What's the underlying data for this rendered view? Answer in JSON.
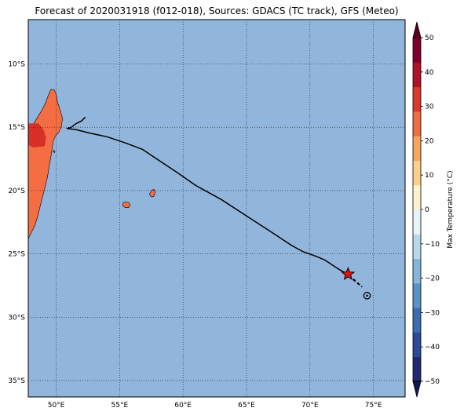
{
  "title": "Forecast of 2020031918 (f012-018), Sources: GDACS (TC track), GFS (Meteo)",
  "map": {
    "lon_range": [
      47.8,
      77.5
    ],
    "lat_range": [
      -36.3,
      -6.5
    ],
    "ocean_color": "#92b5db",
    "grid": "dotted",
    "lon_ticks": [
      {
        "value": 50,
        "label": "50°E"
      },
      {
        "value": 55,
        "label": "55°E"
      },
      {
        "value": 60,
        "label": "60°E"
      },
      {
        "value": 65,
        "label": "65°E"
      },
      {
        "value": 70,
        "label": "70°E"
      },
      {
        "value": 75,
        "label": "75°E"
      }
    ],
    "lat_ticks": [
      {
        "value": -10,
        "label": "10°S"
      },
      {
        "value": -15,
        "label": "15°S"
      },
      {
        "value": -20,
        "label": "20°S"
      },
      {
        "value": -25,
        "label": "25°S"
      },
      {
        "value": -30,
        "label": "30°S"
      },
      {
        "value": -35,
        "label": "35°S"
      }
    ],
    "land": [
      {
        "name": "Madagascar",
        "color": "#f46d43",
        "outline": [
          [
            47.8,
            -16.2
          ],
          [
            48.0,
            -15.2
          ],
          [
            48.3,
            -14.6
          ],
          [
            48.6,
            -14.1
          ],
          [
            48.9,
            -13.6
          ],
          [
            49.2,
            -13.0
          ],
          [
            49.4,
            -12.4
          ],
          [
            49.6,
            -12.0
          ],
          [
            49.85,
            -12.05
          ],
          [
            50.0,
            -12.4
          ],
          [
            50.1,
            -13.0
          ],
          [
            50.3,
            -13.6
          ],
          [
            50.5,
            -14.3
          ],
          [
            50.4,
            -15.0
          ],
          [
            50.2,
            -15.4
          ],
          [
            50.0,
            -15.6
          ],
          [
            49.8,
            -16.0
          ],
          [
            49.7,
            -16.6
          ],
          [
            49.6,
            -17.2
          ],
          [
            49.5,
            -17.8
          ],
          [
            49.4,
            -18.4
          ],
          [
            49.3,
            -19.0
          ],
          [
            49.1,
            -19.8
          ],
          [
            48.9,
            -20.6
          ],
          [
            48.7,
            -21.4
          ],
          [
            48.5,
            -22.2
          ],
          [
            48.3,
            -22.8
          ],
          [
            48.1,
            -23.2
          ],
          [
            47.9,
            -23.6
          ],
          [
            47.8,
            -23.8
          ]
        ]
      },
      {
        "name": "Reunion",
        "color": "#f46d43",
        "outline": [
          [
            55.25,
            -21.0
          ],
          [
            55.45,
            -20.9
          ],
          [
            55.7,
            -20.95
          ],
          [
            55.85,
            -21.15
          ],
          [
            55.7,
            -21.35
          ],
          [
            55.45,
            -21.35
          ],
          [
            55.25,
            -21.2
          ]
        ]
      },
      {
        "name": "Mauritius",
        "color": "#f46d43",
        "outline": [
          [
            57.5,
            -20.0
          ],
          [
            57.7,
            -19.9
          ],
          [
            57.8,
            -20.15
          ],
          [
            57.7,
            -20.45
          ],
          [
            57.5,
            -20.5
          ],
          [
            57.35,
            -20.3
          ]
        ]
      },
      {
        "name": "Ile Sainte-Marie",
        "color": "#f46d43",
        "outline": [
          [
            49.8,
            -16.8
          ],
          [
            49.9,
            -16.9
          ],
          [
            49.88,
            -17.0
          ],
          [
            49.78,
            -16.95
          ]
        ]
      }
    ],
    "warm_patches": [
      {
        "color": "#d73027",
        "outline": [
          [
            47.8,
            -14.7
          ],
          [
            48.6,
            -14.7
          ],
          [
            49.0,
            -15.2
          ],
          [
            49.2,
            -15.8
          ],
          [
            49.1,
            -16.5
          ],
          [
            48.2,
            -16.6
          ],
          [
            47.8,
            -16.4
          ]
        ]
      }
    ],
    "track": {
      "coords": [
        [
          52.3,
          -14.2
        ],
        [
          52.0,
          -14.5
        ],
        [
          51.5,
          -14.75
        ],
        [
          51.2,
          -15.0
        ],
        [
          50.85,
          -15.1
        ],
        [
          51.6,
          -15.2
        ],
        [
          52.6,
          -15.45
        ],
        [
          54.0,
          -15.75
        ],
        [
          55.5,
          -16.25
        ],
        [
          56.8,
          -16.75
        ],
        [
          58.0,
          -17.55
        ],
        [
          59.5,
          -18.55
        ],
        [
          61.0,
          -19.6
        ],
        [
          63.0,
          -20.7
        ],
        [
          65.0,
          -22.0
        ],
        [
          67.0,
          -23.3
        ],
        [
          68.5,
          -24.3
        ],
        [
          69.4,
          -24.8
        ],
        [
          70.5,
          -25.2
        ],
        [
          71.2,
          -25.5
        ],
        [
          72.1,
          -26.1
        ],
        [
          72.6,
          -26.4
        ],
        [
          73.0,
          -26.6
        ]
      ],
      "forecast": [
        [
          73.4,
          -27.0
        ],
        [
          74.1,
          -27.6
        ]
      ],
      "color": "#000000"
    },
    "current_position": {
      "lon": 73.0,
      "lat": -26.6,
      "color": "#e8150e"
    },
    "forecast_position": {
      "lon": 74.5,
      "lat": -28.3
    }
  },
  "colorbar": {
    "label": "Max Temperature (°C)",
    "range": [
      -50,
      50
    ],
    "ticks": [
      {
        "value": 50,
        "label": "50"
      },
      {
        "value": 40,
        "label": "40"
      },
      {
        "value": 30,
        "label": "30"
      },
      {
        "value": 20,
        "label": "20"
      },
      {
        "value": 10,
        "label": "10"
      },
      {
        "value": 0,
        "label": "0"
      },
      {
        "value": -10,
        "label": "−10"
      },
      {
        "value": -20,
        "label": "−20"
      },
      {
        "value": -30,
        "label": "−30"
      },
      {
        "value": -40,
        "label": "−40"
      },
      {
        "value": -50,
        "label": "−50"
      }
    ],
    "colors": [
      "#202870",
      "#2c4a9a",
      "#3d6cb0",
      "#5a93c6",
      "#85b5d8",
      "#b6d8ea",
      "#e6f4f8",
      "#fcf2cc",
      "#fdcf8e",
      "#f9a35d",
      "#ef6c44",
      "#d93a2a",
      "#b01329",
      "#7f0028"
    ],
    "under_color": "#0f1650",
    "over_color": "#5c0018"
  }
}
